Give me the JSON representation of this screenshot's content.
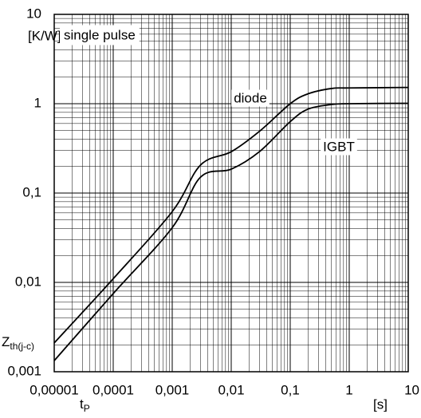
{
  "chart_data": {
    "type": "line",
    "annotation": "single pulse",
    "y_unit": "[K/W]",
    "y_label": {
      "main": "Z",
      "sub": "th(j-c)"
    },
    "x_label": {
      "main": "t",
      "sub": "P"
    },
    "x_unit": "[s]",
    "x_log": true,
    "y_log": true,
    "grid": true,
    "x": [
      1e-05,
      0.0001,
      0.001,
      0.003,
      0.01,
      0.03,
      0.1,
      0.2,
      0.5,
      1,
      10
    ],
    "series": [
      {
        "name": "diode",
        "color": "#000000",
        "values": [
          0.0021,
          0.011,
          0.062,
          0.205,
          0.29,
          0.49,
          1.0,
          1.29,
          1.48,
          1.5,
          1.52
        ]
      },
      {
        "name": "IGBT",
        "color": "#000000",
        "values": [
          0.00133,
          0.0075,
          0.041,
          0.15,
          0.185,
          0.29,
          0.63,
          0.87,
          0.98,
          1.0,
          1.01
        ]
      }
    ],
    "xlim": [
      1e-05,
      10
    ],
    "xticks": [
      {
        "value": 1e-05,
        "label": "0,00001"
      },
      {
        "value": 0.0001,
        "label": "0,0001"
      },
      {
        "value": 0.001,
        "label": "0,001"
      },
      {
        "value": 0.01,
        "label": "0,01"
      },
      {
        "value": 0.1,
        "label": "0,1"
      },
      1,
      10
    ],
    "ylim": [
      0.001,
      10
    ],
    "yticks": [
      {
        "value": 0.001,
        "label": "0,001"
      },
      {
        "value": 0.01,
        "label": "0,01"
      },
      {
        "value": 0.1,
        "label": "0,1"
      },
      1,
      10
    ]
  }
}
